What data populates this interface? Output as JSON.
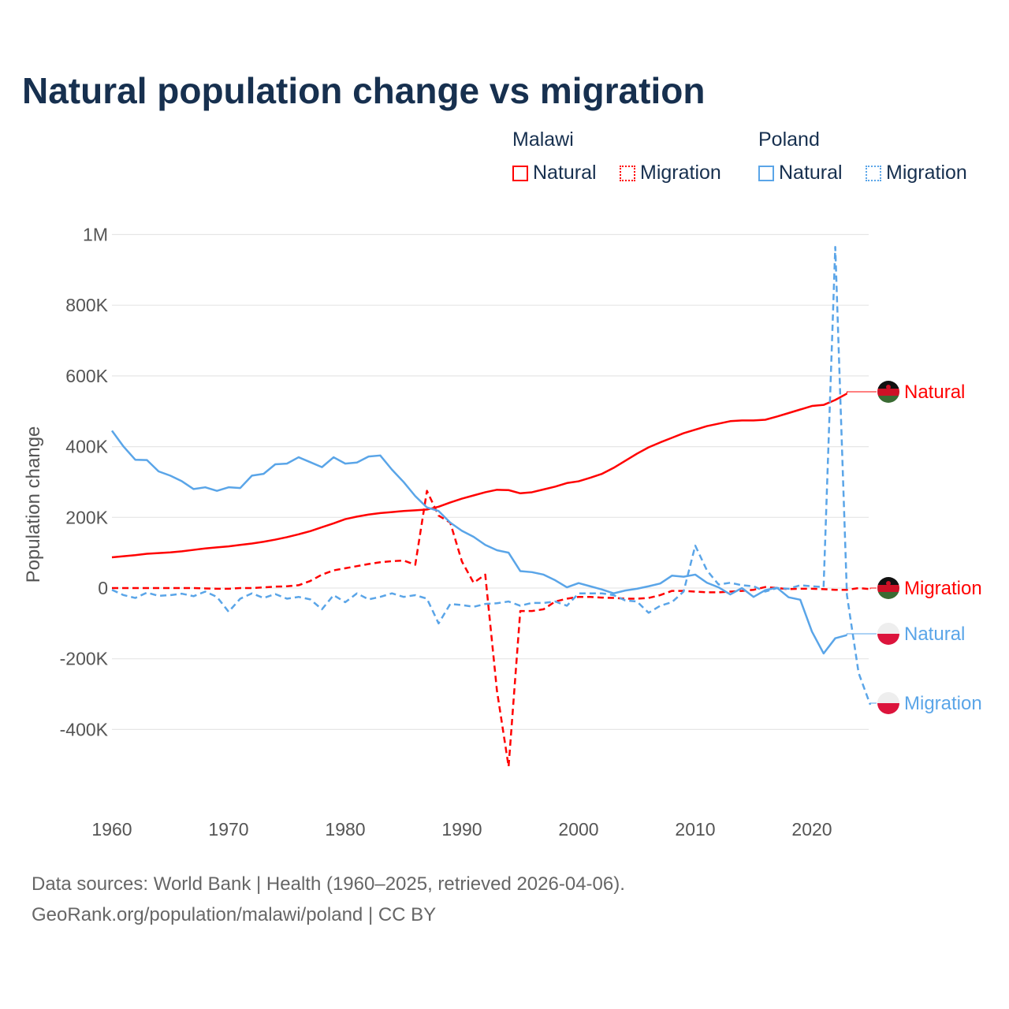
{
  "title": "Natural population change vs migration",
  "legend": {
    "groups": [
      {
        "name": "Malawi",
        "items": [
          "Natural",
          "Migration"
        ],
        "color": "#ff0000"
      },
      {
        "name": "Poland",
        "items": [
          "Natural",
          "Migration"
        ],
        "color": "#5aa5e8"
      }
    ]
  },
  "source": [
    "Data sources: World Bank | Health (1960–2025, retrieved 2026-04-06).",
    "GeoRank.org/population/malawi/poland | CC BY"
  ],
  "chart_data": {
    "type": "line",
    "title": "Natural population change vs migration",
    "xlabel": "",
    "ylabel": "Population change",
    "xlim": [
      1960,
      2025
    ],
    "ylim": [
      -500000,
      1000000
    ],
    "grid": true,
    "x_ticks": [
      "1960",
      "1970",
      "1980",
      "1990",
      "2000",
      "2010",
      "2020"
    ],
    "y_ticks": [
      {
        "v": 1000000,
        "label": "1M"
      },
      {
        "v": 800000,
        "label": "800K"
      },
      {
        "v": 600000,
        "label": "600K"
      },
      {
        "v": 400000,
        "label": "400K"
      },
      {
        "v": 200000,
        "label": "200K"
      },
      {
        "v": 0,
        "label": "0"
      },
      {
        "v": -200000,
        "label": "-200K"
      },
      {
        "v": -400000,
        "label": "-400K"
      }
    ],
    "x_start": 1960,
    "series": [
      {
        "name": "Malawi Natural",
        "end_label": "Natural",
        "color": "#ff0000",
        "dash": false,
        "values_k": [
          87,
          90,
          93,
          97,
          99,
          101,
          104,
          108,
          112,
          115,
          118,
          122,
          126,
          131,
          137,
          144,
          152,
          161,
          172,
          183,
          195,
          202,
          208,
          212,
          215,
          218,
          220,
          222,
          230,
          242,
          253,
          262,
          271,
          278,
          277,
          268,
          271,
          279,
          287,
          297,
          302,
          312,
          323,
          340,
          360,
          380,
          398,
          412,
          425,
          438,
          448,
          458,
          465,
          472,
          474,
          474,
          476,
          485,
          495,
          505,
          515,
          518,
          532,
          550,
          null,
          null
        ]
      },
      {
        "name": "Malawi Migration",
        "end_label": "Migration",
        "color": "#ff0000",
        "dash": true,
        "values_k": [
          0,
          0,
          0,
          0,
          0,
          0,
          0,
          0,
          -1,
          -2,
          -2,
          0,
          0,
          2,
          4,
          5,
          8,
          20,
          38,
          50,
          56,
          62,
          68,
          73,
          76,
          78,
          66,
          275,
          205,
          185,
          75,
          15,
          38,
          -290,
          -505,
          -65,
          -65,
          -60,
          -38,
          -30,
          -25,
          -25,
          -27,
          -28,
          -30,
          -30,
          -28,
          -20,
          -8,
          -8,
          -10,
          -12,
          -12,
          -10,
          -8,
          -5,
          3,
          0,
          -3,
          -2,
          -2,
          -3,
          -5,
          -5,
          0,
          -3
        ]
      },
      {
        "name": "Poland Natural",
        "end_label": "Natural",
        "color": "#5aa5e8",
        "dash": false,
        "values_k": [
          445,
          400,
          363,
          362,
          330,
          318,
          302,
          280,
          285,
          275,
          285,
          283,
          318,
          323,
          350,
          352,
          370,
          356,
          342,
          370,
          352,
          355,
          372,
          375,
          335,
          300,
          260,
          228,
          218,
          185,
          162,
          145,
          122,
          107,
          100,
          48,
          45,
          38,
          22,
          2,
          14,
          5,
          -4,
          -15,
          -7,
          -2,
          5,
          13,
          35,
          32,
          38,
          15,
          2,
          -18,
          0,
          -25,
          -6,
          1,
          -26,
          -33,
          -123,
          -185,
          -142,
          -133,
          null,
          null
        ]
      },
      {
        "name": "Poland Migration",
        "end_label": "Migration",
        "color": "#5aa5e8",
        "dash": true,
        "values_k": [
          -5,
          -20,
          -28,
          -13,
          -22,
          -20,
          -16,
          -23,
          -10,
          -25,
          -67,
          -30,
          -15,
          -28,
          -17,
          -30,
          -25,
          -32,
          -60,
          -20,
          -40,
          -15,
          -32,
          -25,
          -15,
          -25,
          -20,
          -30,
          -100,
          -45,
          -48,
          -53,
          -45,
          -43,
          -38,
          -50,
          -42,
          -42,
          -38,
          -50,
          -15,
          -15,
          -15,
          -20,
          -35,
          -38,
          -70,
          -50,
          -40,
          -10,
          120,
          50,
          10,
          15,
          8,
          5,
          -10,
          0,
          -2,
          8,
          5,
          3,
          965,
          -20,
          -240,
          -330
        ]
      }
    ]
  }
}
